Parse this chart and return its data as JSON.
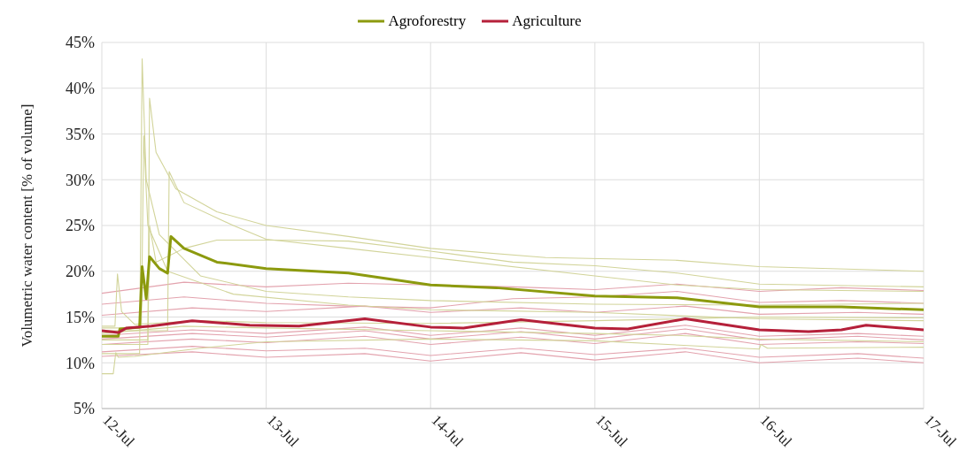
{
  "chart_data": {
    "type": "line",
    "ylabel": "Volumetric water content [% of volume]",
    "xlim": [
      "--07-12",
      "--07-17"
    ],
    "xticks": [
      {
        "value": "--07-12",
        "label": "12-Jul"
      },
      {
        "value": "--07-13",
        "label": "13-Jul"
      },
      {
        "value": "--07-14",
        "label": "14-Jul"
      },
      {
        "value": "--07-15",
        "label": "15-Jul"
      },
      {
        "value": "--07-16",
        "label": "16-Jul"
      },
      {
        "value": "--07-17",
        "label": "17-Jul"
      }
    ],
    "ylim": [
      5,
      45
    ],
    "yticks": [
      {
        "value": 5,
        "label": "5%"
      },
      {
        "value": 10,
        "label": "10%"
      },
      {
        "value": 15,
        "label": "15%"
      },
      {
        "value": 20,
        "label": "20%"
      },
      {
        "value": 25,
        "label": "25%"
      },
      {
        "value": 30,
        "label": "30%"
      },
      {
        "value": 35,
        "label": "35%"
      },
      {
        "value": 40,
        "label": "40%"
      },
      {
        "value": 45,
        "label": "45%"
      }
    ],
    "grid": true,
    "legend": "top",
    "marker": "none",
    "line_style": "solid",
    "series": [
      {
        "color": "#e3a3ae",
        "x": [
          "--07-12T00:00",
          "--07-12T12:00",
          "--07-13T00:00",
          "--07-13T12:00",
          "--07-14T00:00",
          "--07-14T12:00",
          "--07-15T00:00",
          "--07-15T12:00",
          "--07-16T00:00",
          "--07-16T12:00",
          "--07-17T00:00"
        ],
        "values": [
          17.6,
          18.8,
          18.3,
          18.7,
          18.5,
          18.3,
          18,
          18.6,
          17.8,
          18.2,
          17.9
        ]
      },
      {
        "color": "#e3a3ae",
        "x": [
          "--07-12T00:00",
          "--07-12T12:00",
          "--07-13T00:00",
          "--07-13T12:00",
          "--07-14T00:00",
          "--07-14T12:00",
          "--07-15T00:00",
          "--07-15T12:00",
          "--07-16T00:00",
          "--07-16T12:00",
          "--07-17T00:00"
        ],
        "values": [
          16.4,
          17.2,
          16.5,
          16.2,
          16,
          17,
          17.2,
          17.8,
          16.6,
          16.8,
          16.5
        ]
      },
      {
        "color": "#e3a3ae",
        "x": [
          "--07-12T00:00",
          "--07-12T13:12",
          "--07-13T00:00",
          "--07-13T14:24",
          "--07-14T00:00",
          "--07-14T13:12",
          "--07-15T00:00",
          "--07-15T13:12",
          "--07-16T00:00",
          "--07-16T14:24",
          "--07-17T00:00"
        ],
        "values": [
          15.2,
          16,
          15.6,
          16.2,
          15.5,
          16,
          15.5,
          16.2,
          15.3,
          15.5,
          15.3
        ]
      },
      {
        "color": "#e3a3ae",
        "x": [
          "--07-12T00:00",
          "--07-12T13:12",
          "--07-13T00:00",
          "--07-13T14:24",
          "--07-14T00:00",
          "--07-14T13:12",
          "--07-15T00:00",
          "--07-15T13:12",
          "--07-16T00:00",
          "--07-16T14:24",
          "--07-17T00:00"
        ],
        "values": [
          13,
          13.6,
          13.2,
          13.9,
          13,
          13.8,
          13,
          14.1,
          12.9,
          13.2,
          12.9
        ]
      },
      {
        "color": "#e3a3ae",
        "x": [
          "--07-12T00:00",
          "--07-12T13:12",
          "--07-13T00:00",
          "--07-13T14:24",
          "--07-14T00:00",
          "--07-14T13:12",
          "--07-15T00:00",
          "--07-15T13:12",
          "--07-16T00:00",
          "--07-16T14:24",
          "--07-17T00:00"
        ],
        "values": [
          12.6,
          13.2,
          12.8,
          13.5,
          12.6,
          13.4,
          12.6,
          13.7,
          12.5,
          12.9,
          12.5
        ]
      },
      {
        "color": "#e3a3ae",
        "x": [
          "--07-12T00:00",
          "--07-12T13:12",
          "--07-13T00:00",
          "--07-13T14:24",
          "--07-14T00:00",
          "--07-14T13:12",
          "--07-15T00:00",
          "--07-15T13:12",
          "--07-16T00:00",
          "--07-16T14:24",
          "--07-17T00:00"
        ],
        "values": [
          12,
          12.6,
          12.2,
          12.9,
          12,
          12.8,
          12.1,
          13.2,
          12,
          12.3,
          12.1
        ]
      },
      {
        "color": "#e3a3ae",
        "x": [
          "--07-12T00:00",
          "--07-12T13:12",
          "--07-13T00:00",
          "--07-13T14:24",
          "--07-14T00:00",
          "--07-14T13:12",
          "--07-15T00:00",
          "--07-15T13:12",
          "--07-16T00:00",
          "--07-16T14:24",
          "--07-17T00:00"
        ],
        "values": [
          11.2,
          11.8,
          11.3,
          11.6,
          10.8,
          11.6,
          10.9,
          11.6,
          10.6,
          11,
          10.5
        ]
      },
      {
        "color": "#e3a3ae",
        "x": [
          "--07-12T00:00",
          "--07-12T13:12",
          "--07-13T00:00",
          "--07-13T14:24",
          "--07-14T00:00",
          "--07-14T13:12",
          "--07-15T00:00",
          "--07-15T13:12",
          "--07-16T00:00",
          "--07-16T14:24",
          "--07-17T00:00"
        ],
        "values": [
          10.7,
          11.2,
          10.6,
          11,
          10.2,
          11.1,
          10.3,
          11.2,
          10,
          10.5,
          10
        ]
      },
      {
        "color": "#d2d49a",
        "x": [
          "--07-12T00:00",
          "--07-12T05:31",
          "--07-12T05:53",
          "--07-12T06:29",
          "--07-12T08:24",
          "--07-12T14:24",
          "--07-13T00:00",
          "--07-13T12:00",
          "--07-14T00:00",
          "--07-15T00:00",
          "--07-16T00:00",
          "--07-17T00:00"
        ],
        "values": [
          11,
          11,
          43.2,
          30,
          24,
          19.5,
          17.8,
          17.2,
          16.8,
          16.4,
          16.3,
          16.5
        ]
      },
      {
        "color": "#d2d49a",
        "x": [
          "--07-12T00:00",
          "--07-12T06:43",
          "--07-12T06:58",
          "--07-12T07:55",
          "--07-12T10:48",
          "--07-12T16:48",
          "--07-13T00:00",
          "--07-13T12:00",
          "--07-14T00:00",
          "--07-14T16:48",
          "--07-15T12:00",
          "--07-16T00:00",
          "--07-17T00:00"
        ],
        "values": [
          12.5,
          12.5,
          38.9,
          33,
          29,
          26.5,
          25,
          23.8,
          22.5,
          21.5,
          21.2,
          20.5,
          20
        ]
      },
      {
        "color": "#d2d49a",
        "x": [
          "--07-12T00:00",
          "--07-12T09:36",
          "--07-12T09:50",
          "--07-12T12:00",
          "--07-12T19:12",
          "--07-13T00:00",
          "--07-13T12:00",
          "--07-14T00:00",
          "--07-15T00:00",
          "--07-15T12:00",
          "--07-16T00:00",
          "--07-17T00:00"
        ],
        "values": [
          13.5,
          13.5,
          30.9,
          27.5,
          25,
          23.5,
          22.5,
          21.5,
          19.5,
          18.5,
          18,
          17.8
        ]
      },
      {
        "color": "#d2d49a",
        "x": [
          "--07-12T00:00",
          "--07-12T06:43",
          "--07-12T06:58",
          "--07-12T07:55",
          "--07-12T12:00",
          "--07-12T16:48",
          "--07-13T00:00",
          "--07-13T12:00",
          "--07-14T00:00",
          "--07-14T12:00",
          "--07-15T00:00",
          "--07-15T12:00",
          "--07-16T00:00",
          "--07-17T00:00"
        ],
        "values": [
          12,
          12,
          25,
          21,
          22.5,
          23.4,
          23.4,
          23.3,
          22.2,
          21,
          20.6,
          19.8,
          18.6,
          18.3
        ]
      },
      {
        "color": "#d2d49a",
        "x": [
          "--07-12T00:00",
          "--07-12T05:46",
          "--07-12T06:07",
          "--07-12T06:43",
          "--07-12T09:36",
          "--07-12T19:12",
          "--07-13T12:00",
          "--07-14T00:00",
          "--07-15T00:00",
          "--07-16T00:00",
          "--07-17T00:00"
        ],
        "values": [
          13.8,
          13.8,
          34.8,
          25,
          20,
          17.5,
          16.3,
          15.8,
          15.5,
          14.8,
          14.6
        ]
      },
      {
        "color": "#d2d49a",
        "x": [
          "--07-12T00:00",
          "--07-12T01:55",
          "--07-12T02:17",
          "--07-12T02:53",
          "--07-12T04:48",
          "--07-12T14:24",
          "--07-13T00:00",
          "--07-14T00:00",
          "--07-15T00:00",
          "--07-16T00:00",
          "--07-17T00:00"
        ],
        "values": [
          14,
          14,
          19.7,
          15.6,
          14.2,
          14.6,
          14.4,
          14.3,
          14.6,
          15,
          14.9
        ]
      },
      {
        "color": "#d2d49a",
        "x": [
          "--07-12T00:00",
          "--07-12T12:00",
          "--07-13T00:00",
          "--07-14T00:00",
          "--07-15T00:00",
          "--07-15T12:00",
          "--07-16T00:00",
          "--07-17T00:00"
        ],
        "values": [
          13.2,
          14,
          13.8,
          13.5,
          13.2,
          13,
          12.6,
          12.3
        ]
      },
      {
        "color": "#d2d49a",
        "x": [
          "--07-12T00:00",
          "--07-12T01:40",
          "--07-12T02:02",
          "--07-12T02:24",
          "--07-12T04:48",
          "--07-12T14:24",
          "--07-13T00:00",
          "--07-14T00:00",
          "--07-15T00:00",
          "--07-16T00:00",
          "--07-16T00:14",
          "--07-16T01:12",
          "--07-17T00:00"
        ],
        "values": [
          8.8,
          8.8,
          11.1,
          10.6,
          10.7,
          11.6,
          12.3,
          12.6,
          12.4,
          11.5,
          12,
          11.6,
          11.7
        ]
      },
      {
        "name": "Agroforestry",
        "color": "#8c9a0e",
        "x": [
          "--07-12T00:00",
          "--07-12T02:24",
          "--07-12T02:38",
          "--07-12T05:31",
          "--07-12T05:53",
          "--07-12T06:29",
          "--07-12T06:58",
          "--07-12T08:24",
          "--07-12T09:36",
          "--07-12T10:05",
          "--07-12T12:00",
          "--07-12T16:48",
          "--07-13T00:00",
          "--07-13T12:00",
          "--07-14T00:00",
          "--07-14T09:36",
          "--07-15T00:00",
          "--07-15T12:00",
          "--07-16T00:00",
          "--07-16T12:00",
          "--07-17T00:00"
        ],
        "values": [
          12.9,
          12.9,
          13.7,
          13.9,
          20.5,
          17,
          21.6,
          20.3,
          19.8,
          23.8,
          22.5,
          21,
          20.3,
          19.8,
          18.5,
          18.2,
          17.3,
          17.1,
          16.1,
          16.1,
          15.8
        ]
      },
      {
        "name": "Agriculture",
        "color": "#b5203a",
        "x": [
          "--07-12T00:00",
          "--07-12T02:24",
          "--07-12T03:36",
          "--07-12T07:12",
          "--07-12T13:12",
          "--07-12T21:36",
          "--07-13T04:48",
          "--07-13T14:24",
          "--07-14T00:00",
          "--07-14T04:48",
          "--07-14T13:12",
          "--07-15T00:00",
          "--07-15T04:48",
          "--07-15T13:12",
          "--07-16T00:00",
          "--07-16T07:12",
          "--07-16T12:00",
          "--07-16T15:36",
          "--07-17T00:00"
        ],
        "values": [
          13.5,
          13.3,
          13.8,
          14,
          14.6,
          14.1,
          14,
          14.8,
          13.9,
          13.8,
          14.7,
          13.8,
          13.7,
          14.8,
          13.6,
          13.4,
          13.6,
          14.1,
          13.6
        ]
      }
    ]
  }
}
